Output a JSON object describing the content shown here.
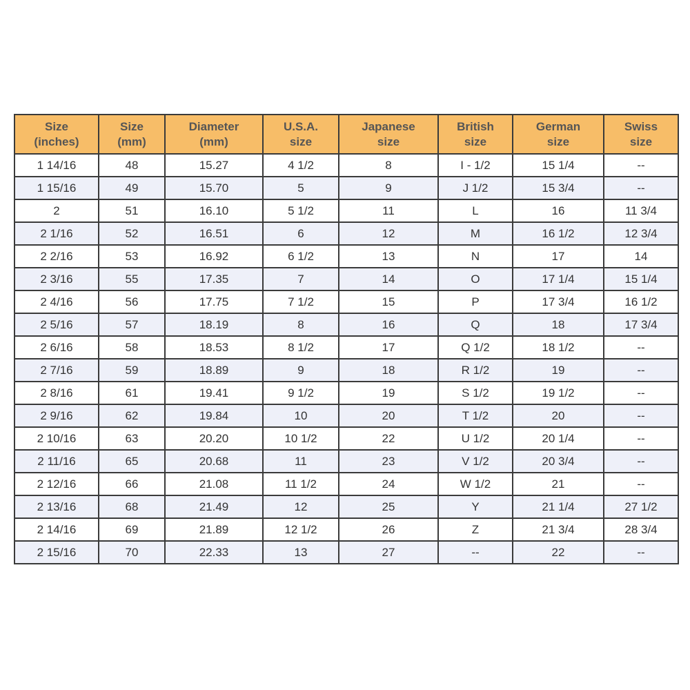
{
  "colors": {
    "header_bg": "#f7bd68",
    "alt_row_bg": "#eef0f9",
    "border": "#3a3a3a"
  },
  "headers": [
    [
      "Size",
      "(inches)"
    ],
    [
      "Size",
      "(mm)"
    ],
    [
      "Diameter",
      "(mm)"
    ],
    [
      "U.S.A.",
      "size"
    ],
    [
      "Japanese",
      "size"
    ],
    [
      "British",
      "size"
    ],
    [
      "German",
      "size"
    ],
    [
      "Swiss",
      "size"
    ]
  ],
  "rows": [
    [
      "1 14/16",
      "48",
      "15.27",
      "4 1/2",
      "8",
      "I - 1/2",
      "15 1/4",
      "--"
    ],
    [
      "1 15/16",
      "49",
      "15.70",
      "5",
      "9",
      "J 1/2",
      "15 3/4",
      "--"
    ],
    [
      "2",
      "51",
      "16.10",
      "5 1/2",
      "11",
      "L",
      "16",
      "11 3/4"
    ],
    [
      "2 1/16",
      "52",
      "16.51",
      "6",
      "12",
      "M",
      "16 1/2",
      "12 3/4"
    ],
    [
      "2 2/16",
      "53",
      "16.92",
      "6 1/2",
      "13",
      "N",
      "17",
      "14"
    ],
    [
      "2 3/16",
      "55",
      "17.35",
      "7",
      "14",
      "O",
      "17 1/4",
      "15 1/4"
    ],
    [
      "2 4/16",
      "56",
      "17.75",
      "7 1/2",
      "15",
      "P",
      "17 3/4",
      "16 1/2"
    ],
    [
      "2 5/16",
      "57",
      "18.19",
      "8",
      "16",
      "Q",
      "18",
      "17 3/4"
    ],
    [
      "2 6/16",
      "58",
      "18.53",
      "8 1/2",
      "17",
      "Q 1/2",
      "18 1/2",
      "--"
    ],
    [
      "2 7/16",
      "59",
      "18.89",
      "9",
      "18",
      "R 1/2",
      "19",
      "--"
    ],
    [
      "2 8/16",
      "61",
      "19.41",
      "9 1/2",
      "19",
      "S 1/2",
      "19 1/2",
      "--"
    ],
    [
      "2 9/16",
      "62",
      "19.84",
      "10",
      "20",
      "T 1/2",
      "20",
      "--"
    ],
    [
      "2 10/16",
      "63",
      "20.20",
      "10 1/2",
      "22",
      "U 1/2",
      "20 1/4",
      "--"
    ],
    [
      "2 11/16",
      "65",
      "20.68",
      "11",
      "23",
      "V 1/2",
      "20 3/4",
      "--"
    ],
    [
      "2 12/16",
      "66",
      "21.08",
      "11 1/2",
      "24",
      "W 1/2",
      "21",
      "--"
    ],
    [
      "2 13/16",
      "68",
      "21.49",
      "12",
      "25",
      "Y",
      "21 1/4",
      "27 1/2"
    ],
    [
      "2 14/16",
      "69",
      "21.89",
      "12 1/2",
      "26",
      "Z",
      "21 3/4",
      "28 3/4"
    ],
    [
      "2 15/16",
      "70",
      "22.33",
      "13",
      "27",
      "--",
      "22",
      "--"
    ]
  ]
}
